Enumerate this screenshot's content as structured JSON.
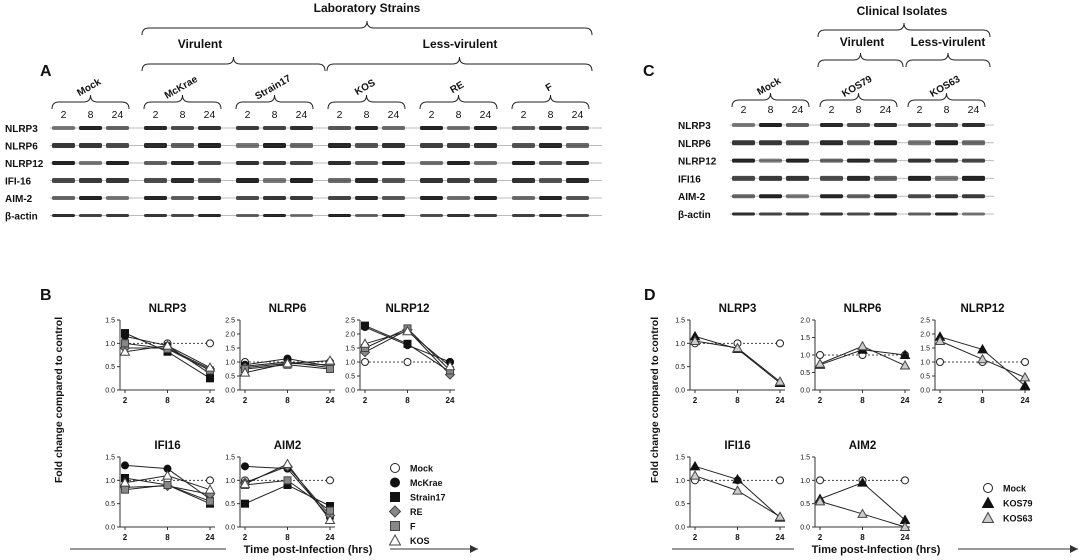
{
  "figure": {
    "panel_A": {
      "label": "A",
      "group_title": "Laboratory Strains",
      "virulent_label": "Virulent",
      "less_virulent_label": "Less-virulent",
      "strains": [
        "Mock",
        "McKrae",
        "Strain17",
        "KOS",
        "RE",
        "F"
      ],
      "timepoints": [
        "2",
        "8",
        "24"
      ],
      "rows": [
        "NLRP3",
        "NLRP6",
        "NLRP12",
        "IFI-16",
        "AIM-2",
        "β-actin"
      ]
    },
    "panel_C": {
      "label": "C",
      "group_title": "Clinical Isolates",
      "virulent_label": "Virulent",
      "less_virulent_label": "Less-virulent",
      "strains": [
        "Mock",
        "KOS79",
        "KOS63"
      ],
      "timepoints": [
        "2",
        "8",
        "24"
      ],
      "rows": [
        "NLRP3",
        "NLRP6",
        "NLRP12",
        "IFI16",
        "AIM-2",
        "β-actin"
      ]
    },
    "panel_B": {
      "label": "B",
      "ylabel": "Fold change compared to control",
      "xlabel": "Time post-Infection (hrs)",
      "legend": [
        "Mock",
        "McKrae",
        "Strain17",
        "RE",
        "F",
        "KOS"
      ]
    },
    "panel_D": {
      "label": "D",
      "ylabel": "Fold change compared to control",
      "xlabel": "Time post-Infection (hrs)",
      "legend": [
        "Mock",
        "KOS79",
        "KOS63"
      ]
    }
  },
  "chart_data": [
    {
      "panel": "B",
      "type": "line",
      "title": "NLRP3",
      "x": [
        "2",
        "8",
        "24"
      ],
      "ylim": [
        0,
        1.5
      ],
      "yticks": [
        "0.0",
        "0.5",
        "1.0",
        "1.5"
      ],
      "series": [
        {
          "name": "Mock",
          "values": [
            1.0,
            1.0,
            1.0
          ]
        },
        {
          "name": "McKrae",
          "values": [
            1.15,
            0.95,
            0.35
          ]
        },
        {
          "name": "Strain17",
          "values": [
            1.22,
            0.82,
            0.25
          ]
        },
        {
          "name": "RE",
          "values": [
            0.9,
            0.9,
            0.45
          ]
        },
        {
          "name": "F",
          "values": [
            1.0,
            0.88,
            0.42
          ]
        },
        {
          "name": "KOS",
          "values": [
            0.82,
            0.95,
            0.48
          ]
        }
      ]
    },
    {
      "panel": "B",
      "type": "line",
      "title": "NLRP6",
      "x": [
        "2",
        "8",
        "24"
      ],
      "ylim": [
        0,
        2.5
      ],
      "yticks": [
        "0.0",
        "0.5",
        "1.0",
        "1.5",
        "2.0",
        "2.5"
      ],
      "series": [
        {
          "name": "Mock",
          "values": [
            1.0,
            1.0,
            1.0
          ]
        },
        {
          "name": "McKrae",
          "values": [
            0.9,
            1.12,
            0.85
          ]
        },
        {
          "name": "Strain17",
          "values": [
            0.85,
            1.0,
            0.8
          ]
        },
        {
          "name": "RE",
          "values": [
            0.8,
            0.95,
            0.9
          ]
        },
        {
          "name": "F",
          "values": [
            0.75,
            0.9,
            0.75
          ]
        },
        {
          "name": "KOS",
          "values": [
            0.62,
            0.95,
            1.05
          ]
        }
      ]
    },
    {
      "panel": "B",
      "type": "line",
      "title": "NLRP12",
      "x": [
        "2",
        "8",
        "24"
      ],
      "ylim": [
        0,
        2.5
      ],
      "yticks": [
        "0.0",
        "0.5",
        "1.0",
        "1.5",
        "2.0",
        "2.5"
      ],
      "series": [
        {
          "name": "Mock",
          "values": [
            1.0,
            1.0,
            1.0
          ]
        },
        {
          "name": "McKrae",
          "values": [
            2.25,
            1.6,
            1.0
          ]
        },
        {
          "name": "Strain17",
          "values": [
            2.3,
            1.65,
            0.65
          ]
        },
        {
          "name": "RE",
          "values": [
            1.35,
            2.15,
            0.55
          ]
        },
        {
          "name": "F",
          "values": [
            1.5,
            2.2,
            0.7
          ]
        },
        {
          "name": "KOS",
          "values": [
            1.65,
            2.1,
            0.85
          ]
        }
      ]
    },
    {
      "panel": "B",
      "type": "line",
      "title": "IFI16",
      "x": [
        "2",
        "8",
        "24"
      ],
      "ylim": [
        0,
        1.5
      ],
      "yticks": [
        "0.0",
        "0.5",
        "1.0",
        "1.5"
      ],
      "series": [
        {
          "name": "Mock",
          "values": [
            1.0,
            1.0,
            1.0
          ]
        },
        {
          "name": "McKrae",
          "values": [
            1.32,
            1.25,
            0.6
          ]
        },
        {
          "name": "Strain17",
          "values": [
            1.05,
            0.9,
            0.5
          ]
        },
        {
          "name": "RE",
          "values": [
            0.85,
            0.88,
            0.7
          ]
        },
        {
          "name": "F",
          "values": [
            0.8,
            0.9,
            0.55
          ]
        },
        {
          "name": "KOS",
          "values": [
            0.95,
            1.1,
            0.8
          ]
        }
      ]
    },
    {
      "panel": "B",
      "type": "line",
      "title": "AIM2",
      "x": [
        "2",
        "8",
        "24"
      ],
      "ylim": [
        0,
        1.5
      ],
      "yticks": [
        "0.0",
        "0.5",
        "1.0",
        "1.5"
      ],
      "series": [
        {
          "name": "Mock",
          "values": [
            1.0,
            1.0,
            1.0
          ]
        },
        {
          "name": "McKrae",
          "values": [
            1.3,
            1.25,
            0.2
          ]
        },
        {
          "name": "Strain17",
          "values": [
            0.5,
            0.9,
            0.45
          ]
        },
        {
          "name": "RE",
          "values": [
            0.95,
            1.3,
            0.25
          ]
        },
        {
          "name": "F",
          "values": [
            0.9,
            1.0,
            0.35
          ]
        },
        {
          "name": "KOS",
          "values": [
            0.92,
            1.35,
            0.15
          ]
        }
      ]
    },
    {
      "panel": "D",
      "type": "line",
      "title": "NLRP3",
      "x": [
        "2",
        "8",
        "24"
      ],
      "ylim": [
        0,
        1.5
      ],
      "yticks": [
        "0.0",
        "0.5",
        "1.0",
        "1.5"
      ],
      "series": [
        {
          "name": "Mock",
          "values": [
            1.0,
            1.0,
            1.0
          ]
        },
        {
          "name": "KOS79",
          "values": [
            1.15,
            0.88,
            0.15
          ]
        },
        {
          "name": "KOS63",
          "values": [
            1.05,
            0.9,
            0.18
          ]
        }
      ]
    },
    {
      "panel": "D",
      "type": "line",
      "title": "NLRP6",
      "x": [
        "2",
        "8",
        "24"
      ],
      "ylim": [
        0,
        2.0
      ],
      "yticks": [
        "0.0",
        "0.5",
        "1.0",
        "1.5",
        "2.0"
      ],
      "series": [
        {
          "name": "Mock",
          "values": [
            1.0,
            1.0,
            1.0
          ]
        },
        {
          "name": "KOS79",
          "values": [
            0.72,
            1.15,
            1.0
          ]
        },
        {
          "name": "KOS63",
          "values": [
            0.75,
            1.25,
            0.7
          ]
        }
      ]
    },
    {
      "panel": "D",
      "type": "line",
      "title": "NLRP12",
      "x": [
        "2",
        "8",
        "24"
      ],
      "ylim": [
        0,
        2.5
      ],
      "yticks": [
        "0.0",
        "0.5",
        "1.0",
        "1.5",
        "2.0",
        "2.5"
      ],
      "series": [
        {
          "name": "Mock",
          "values": [
            1.0,
            1.0,
            1.0
          ]
        },
        {
          "name": "KOS79",
          "values": [
            1.9,
            1.45,
            0.15
          ]
        },
        {
          "name": "KOS63",
          "values": [
            1.75,
            1.1,
            0.45
          ]
        }
      ]
    },
    {
      "panel": "D",
      "type": "line",
      "title": "IFI16",
      "x": [
        "2",
        "8",
        "24"
      ],
      "ylim": [
        0,
        1.5
      ],
      "yticks": [
        "0.0",
        "0.5",
        "1.0",
        "1.5"
      ],
      "series": [
        {
          "name": "Mock",
          "values": [
            1.0,
            1.0,
            1.0
          ]
        },
        {
          "name": "KOS79",
          "values": [
            1.3,
            1.02,
            0.2
          ]
        },
        {
          "name": "KOS63",
          "values": [
            1.1,
            0.78,
            0.22
          ]
        }
      ]
    },
    {
      "panel": "D",
      "type": "line",
      "title": "AIM2",
      "x": [
        "2",
        "8",
        "24"
      ],
      "ylim": [
        0,
        1.5
      ],
      "yticks": [
        "0.0",
        "0.5",
        "1.0",
        "1.5"
      ],
      "series": [
        {
          "name": "Mock",
          "values": [
            1.0,
            1.0,
            1.0
          ]
        },
        {
          "name": "KOS79",
          "values": [
            0.6,
            0.95,
            0.15
          ]
        },
        {
          "name": "KOS63",
          "values": [
            0.55,
            0.28,
            0.0
          ]
        }
      ]
    }
  ]
}
